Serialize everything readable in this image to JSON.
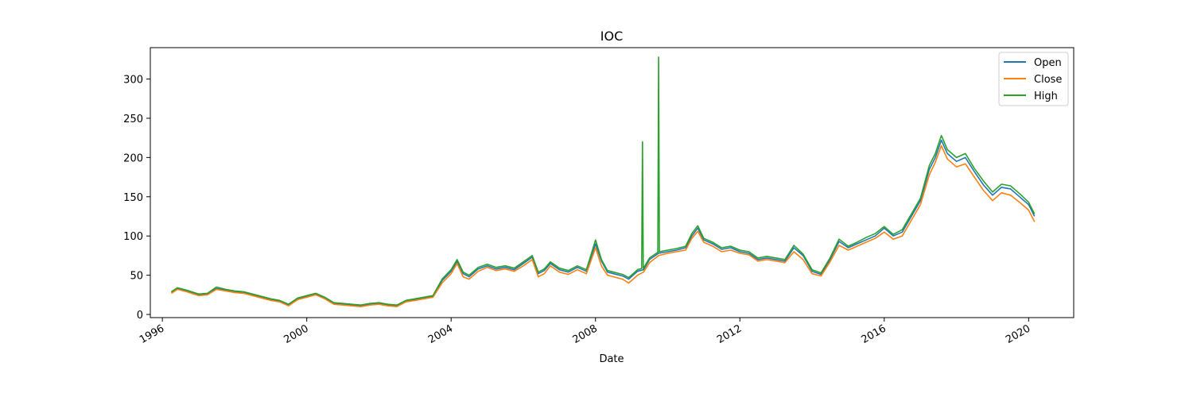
{
  "chart_data": {
    "type": "line",
    "title": "IOC",
    "xlabel": "Date",
    "ylabel": "",
    "xlim": [
      "1995-09-01",
      "2021-04-01"
    ],
    "ylim": [
      -4,
      340
    ],
    "x_ticks": [
      "1996",
      "2000",
      "2004",
      "2008",
      "2012",
      "2016",
      "2020"
    ],
    "y_ticks": [
      0,
      50,
      100,
      150,
      200,
      250,
      300
    ],
    "grid": false,
    "legend_position": "top-right",
    "colors": {
      "Open": "#1f77b4",
      "Close": "#ff7f0e",
      "High": "#2ca02c"
    },
    "dates": [
      "1996-04-01",
      "1996-06-01",
      "1996-09-01",
      "1997-01-01",
      "1997-04-01",
      "1997-07-01",
      "1997-10-01",
      "1998-01-01",
      "1998-04-01",
      "1998-07-01",
      "1998-10-01",
      "1999-01-01",
      "1999-04-01",
      "1999-07-01",
      "1999-10-01",
      "2000-01-01",
      "2000-04-01",
      "2000-07-01",
      "2000-10-01",
      "2001-01-01",
      "2001-04-01",
      "2001-07-01",
      "2001-10-01",
      "2002-01-01",
      "2002-04-01",
      "2002-07-01",
      "2002-10-01",
      "2003-01-01",
      "2003-04-01",
      "2003-07-01",
      "2003-10-01",
      "2004-01-01",
      "2004-03-01",
      "2004-05-01",
      "2004-07-01",
      "2004-10-01",
      "2005-01-01",
      "2005-04-01",
      "2005-07-01",
      "2005-10-01",
      "2006-01-01",
      "2006-04-01",
      "2006-06-01",
      "2006-08-01",
      "2006-10-01",
      "2007-01-01",
      "2007-04-01",
      "2007-07-01",
      "2007-10-01",
      "2008-01-01",
      "2008-03-01",
      "2008-05-01",
      "2008-07-01",
      "2008-10-01",
      "2008-12-01",
      "2009-03-01",
      "2009-05-01",
      "2009-07-01",
      "2009-10-01",
      "2010-01-01",
      "2010-04-01",
      "2010-07-01",
      "2010-09-01",
      "2010-11-01",
      "2011-01-01",
      "2011-04-01",
      "2011-07-01",
      "2011-10-01",
      "2012-01-01",
      "2012-04-01",
      "2012-07-01",
      "2012-10-01",
      "2013-01-01",
      "2013-04-01",
      "2013-07-01",
      "2013-10-01",
      "2014-01-01",
      "2014-04-01",
      "2014-07-01",
      "2014-10-01",
      "2015-01-01",
      "2015-04-01",
      "2015-07-01",
      "2015-10-01",
      "2016-01-01",
      "2016-04-01",
      "2016-07-01",
      "2016-10-01",
      "2017-01-01",
      "2017-04-01",
      "2017-06-01",
      "2017-08-01",
      "2017-10-01",
      "2018-01-01",
      "2018-04-01",
      "2018-07-01",
      "2018-10-01",
      "2019-01-01",
      "2019-04-01",
      "2019-07-01",
      "2019-10-01",
      "2020-01-01",
      "2020-03-01"
    ],
    "series": [
      {
        "name": "Open",
        "values": [
          28,
          33,
          30,
          25,
          26,
          33,
          31,
          29,
          28,
          25,
          22,
          19,
          17,
          12,
          20,
          23,
          26,
          21,
          14,
          13,
          12,
          11,
          13,
          14,
          12,
          11,
          17,
          19,
          21,
          23,
          43,
          55,
          68,
          52,
          48,
          58,
          62,
          58,
          60,
          57,
          65,
          73,
          52,
          56,
          65,
          57,
          54,
          60,
          55,
          90,
          68,
          54,
          52,
          49,
          45,
          55,
          57,
          70,
          78,
          80,
          82,
          85,
          100,
          110,
          95,
          90,
          83,
          85,
          80,
          78,
          70,
          72,
          70,
          68,
          85,
          75,
          55,
          51,
          70,
          93,
          85,
          90,
          95,
          100,
          110,
          100,
          105,
          125,
          145,
          185,
          200,
          222,
          205,
          195,
          200,
          182,
          165,
          152,
          162,
          160,
          150,
          140,
          125
        ]
      },
      {
        "name": "Close",
        "values": [
          27,
          32,
          29,
          24,
          25,
          32,
          30,
          28,
          27,
          24,
          21,
          18,
          16,
          11,
          19,
          22,
          25,
          20,
          13,
          12,
          11,
          10,
          12,
          13,
          11,
          10,
          16,
          18,
          20,
          22,
          40,
          52,
          65,
          48,
          45,
          55,
          60,
          56,
          58,
          55,
          62,
          70,
          48,
          52,
          62,
          54,
          51,
          57,
          52,
          85,
          62,
          50,
          48,
          45,
          40,
          50,
          54,
          66,
          75,
          78,
          80,
          82,
          97,
          106,
          92,
          87,
          80,
          82,
          78,
          76,
          68,
          70,
          68,
          66,
          80,
          70,
          52,
          49,
          67,
          88,
          82,
          87,
          92,
          97,
          105,
          96,
          100,
          120,
          140,
          178,
          194,
          215,
          198,
          188,
          192,
          175,
          158,
          145,
          155,
          152,
          143,
          133,
          118
        ]
      },
      {
        "name": "High",
        "values": [
          29,
          34,
          31,
          26,
          27,
          35,
          32,
          30,
          29,
          26,
          23,
          20,
          18,
          13,
          21,
          24,
          27,
          22,
          15,
          14,
          13,
          12,
          14,
          15,
          13,
          12,
          18,
          20,
          22,
          24,
          45,
          57,
          70,
          54,
          50,
          60,
          64,
          60,
          62,
          59,
          67,
          75,
          54,
          58,
          67,
          59,
          56,
          62,
          57,
          95,
          70,
          56,
          54,
          51,
          47,
          57,
          59,
          72,
          80,
          82,
          84,
          87,
          103,
          113,
          97,
          92,
          85,
          87,
          82,
          80,
          72,
          74,
          72,
          70,
          88,
          77,
          57,
          53,
          72,
          96,
          87,
          92,
          98,
          103,
          112,
          102,
          108,
          128,
          148,
          190,
          205,
          228,
          210,
          200,
          205,
          186,
          170,
          156,
          166,
          164,
          154,
          143,
          128
        ]
      }
    ],
    "spikes": [
      {
        "series": "High",
        "date": "2009-04-20",
        "value": 220
      },
      {
        "series": "High",
        "date": "2009-10-01",
        "value": 328
      }
    ]
  },
  "legend": {
    "items": [
      {
        "label": "Open"
      },
      {
        "label": "Close"
      },
      {
        "label": "High"
      }
    ]
  }
}
